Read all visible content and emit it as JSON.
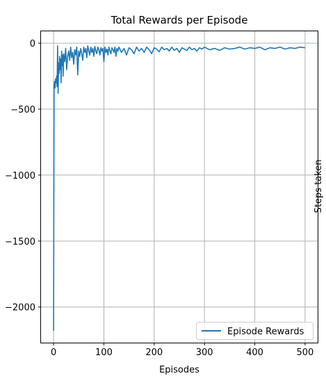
{
  "chart_data": {
    "type": "line",
    "title": "Total Rewards per Episode",
    "xlabel": "Episodes",
    "ylabel": "Steps taken",
    "xlim": [
      -25,
      525
    ],
    "ylim": [
      -2270,
      90
    ],
    "xticks": [
      0,
      100,
      200,
      300,
      400,
      500
    ],
    "yticks": [
      0,
      -500,
      -1000,
      -1500,
      -2000
    ],
    "xtick_labels": [
      "0",
      "100",
      "200",
      "300",
      "400",
      "500"
    ],
    "ytick_labels": [
      "0",
      "−500",
      "−1000",
      "−1500",
      "−2000"
    ],
    "grid": true,
    "legend_position": "lower-right",
    "series": [
      {
        "name": "Episode Rewards",
        "color": "#1f77b4",
        "x": [
          0,
          1,
          2,
          3,
          4,
          5,
          6,
          7,
          8,
          9,
          10,
          11,
          12,
          13,
          14,
          15,
          16,
          17,
          18,
          19,
          20,
          22,
          24,
          26,
          28,
          30,
          32,
          34,
          36,
          38,
          40,
          42,
          44,
          46,
          48,
          50,
          52,
          54,
          56,
          58,
          60,
          62,
          64,
          66,
          68,
          70,
          72,
          74,
          76,
          78,
          80,
          82,
          84,
          86,
          88,
          90,
          92,
          94,
          96,
          98,
          100,
          102,
          104,
          106,
          108,
          110,
          112,
          114,
          116,
          118,
          120,
          122,
          124,
          126,
          128,
          130,
          135,
          140,
          145,
          150,
          155,
          160,
          165,
          170,
          175,
          180,
          185,
          190,
          195,
          200,
          205,
          210,
          215,
          220,
          225,
          230,
          235,
          240,
          245,
          250,
          255,
          260,
          265,
          270,
          275,
          280,
          285,
          290,
          295,
          300,
          310,
          320,
          330,
          340,
          350,
          360,
          370,
          380,
          390,
          400,
          410,
          420,
          430,
          440,
          450,
          460,
          470,
          480,
          490,
          500
        ],
        "y": [
          -2180,
          -320,
          -290,
          -340,
          -270,
          -300,
          -250,
          -330,
          -20,
          -380,
          -150,
          -230,
          -100,
          -200,
          -120,
          -300,
          -60,
          -170,
          -90,
          -250,
          -80,
          -140,
          -40,
          -200,
          -100,
          -60,
          -130,
          -30,
          -110,
          -70,
          -160,
          -50,
          -90,
          -30,
          -240,
          -60,
          -100,
          -40,
          -80,
          -130,
          -30,
          -70,
          -40,
          -110,
          -20,
          -60,
          -90,
          -30,
          -70,
          -40,
          -100,
          -25,
          -60,
          -80,
          -30,
          -50,
          -90,
          -35,
          -60,
          -40,
          -140,
          -30,
          -70,
          -45,
          -90,
          -30,
          -60,
          -80,
          -35,
          -50,
          -70,
          -30,
          -100,
          -40,
          -60,
          -30,
          -70,
          -40,
          -90,
          -35,
          -50,
          -80,
          -30,
          -60,
          -40,
          -70,
          -30,
          -50,
          -80,
          -35,
          -45,
          -65,
          -30,
          -50,
          -40,
          -60,
          -30,
          -55,
          -40,
          -70,
          -35,
          -45,
          -55,
          -30,
          -50,
          -40,
          -60,
          -35,
          -45,
          -30,
          -50,
          -40,
          -55,
          -35,
          -45,
          -40,
          -30,
          -45,
          -35,
          -40,
          -30,
          -50,
          -35,
          -40,
          -30,
          -45,
          -35,
          -40,
          -30,
          -35
        ]
      }
    ]
  }
}
